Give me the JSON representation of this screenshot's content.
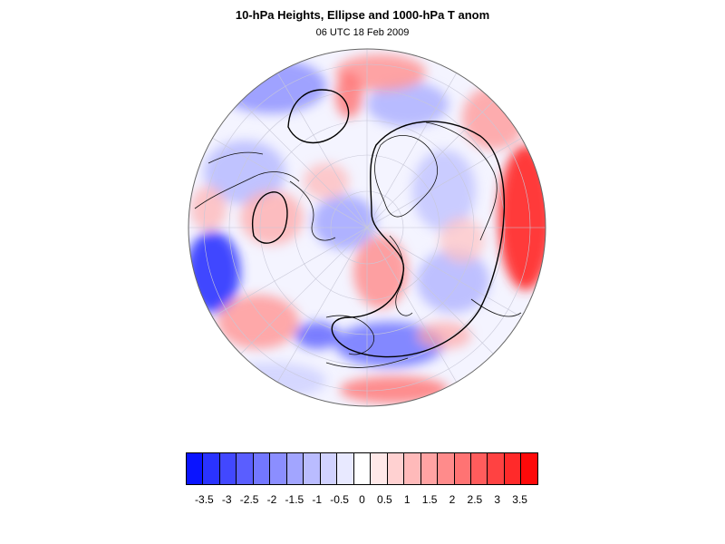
{
  "title": "10-hPa Heights, Ellipse and 1000-hPa T anom",
  "subtitle": "06 UTC 18 Feb 2009",
  "map": {
    "projection": "orthographic-north-polar",
    "graticule": true,
    "coastlines": true,
    "field": "1000-hPa temperature anomaly",
    "contour": "10-hPa heights ellipse"
  },
  "colorbar": {
    "colors": [
      "#0a14ff",
      "#2a33ff",
      "#4248ff",
      "#5a5eff",
      "#7377ff",
      "#8b8eff",
      "#a2a5ff",
      "#babcff",
      "#d1d2ff",
      "#e8e9ff",
      "#ffffff",
      "#ffe8e8",
      "#ffd1d1",
      "#ffbaba",
      "#ffa3a3",
      "#ff8b8b",
      "#ff7373",
      "#ff5c5c",
      "#ff4242",
      "#ff2a2a",
      "#ff0a0a"
    ],
    "tick_labels": [
      "-3.5",
      "-3",
      "-2.5",
      "-2",
      "-1.5",
      "-1",
      "-0.5",
      "0",
      "0.5",
      "1",
      "1.5",
      "2",
      "2.5",
      "3",
      "3.5"
    ]
  }
}
